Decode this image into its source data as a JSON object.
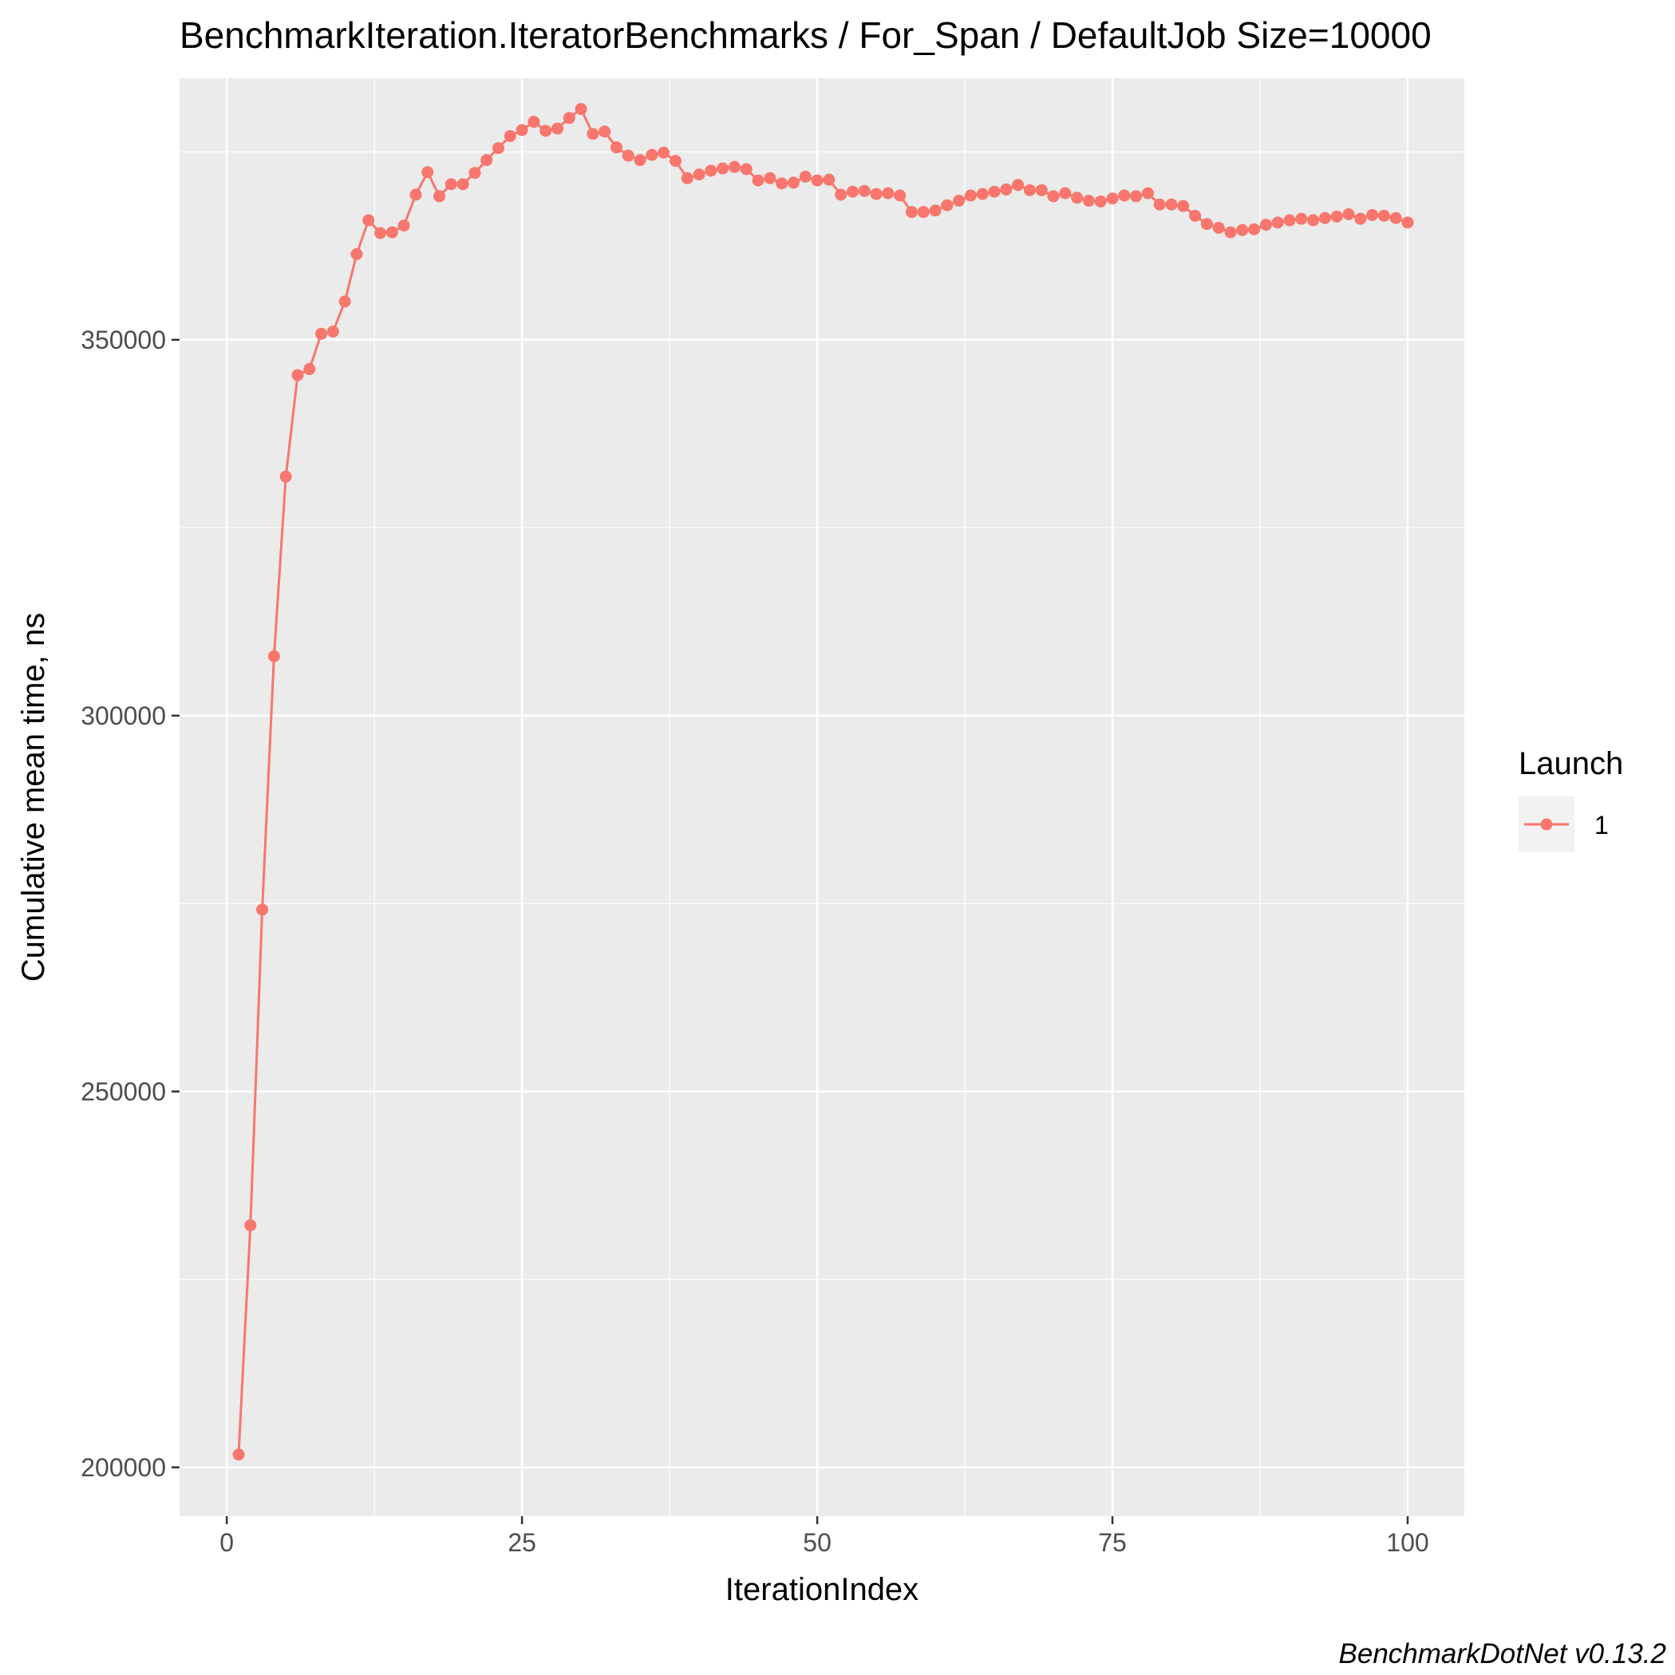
{
  "chart_data": {
    "type": "line",
    "title": "BenchmarkIteration.IteratorBenchmarks / For_Span / DefaultJob Size=10000",
    "xlabel": "IterationIndex",
    "ylabel": "Cumulative mean time, ns",
    "caption": "BenchmarkDotNet v0.13.2",
    "xlim": [
      -4,
      104.8
    ],
    "ylim": [
      193500,
      384800
    ],
    "x_ticks": [
      0,
      25,
      50,
      75,
      100
    ],
    "x_tick_labels": [
      "0",
      "25",
      "50",
      "75",
      "100"
    ],
    "y_ticks": [
      200000,
      250000,
      300000,
      350000
    ],
    "y_tick_labels": [
      "200000",
      "250000",
      "300000",
      "350000"
    ],
    "x_minor_ticks": [
      12.5,
      37.5,
      62.5,
      87.5
    ],
    "y_minor_ticks": [
      225000,
      275000,
      325000,
      375000
    ],
    "grid": true,
    "legend": {
      "title": "Launch",
      "position": "right"
    },
    "colors": {
      "series": "#F8766D",
      "panel": "#EBEBEB",
      "grid": "#FFFFFF"
    },
    "series": [
      {
        "name": "1",
        "x": [
          1,
          2,
          3,
          4,
          5,
          6,
          7,
          8,
          9,
          10,
          11,
          12,
          13,
          14,
          15,
          16,
          17,
          18,
          19,
          20,
          21,
          22,
          23,
          24,
          25,
          26,
          27,
          28,
          29,
          30,
          31,
          32,
          33,
          34,
          35,
          36,
          37,
          38,
          39,
          40,
          41,
          42,
          43,
          44,
          45,
          46,
          47,
          48,
          49,
          50,
          51,
          52,
          53,
          54,
          55,
          56,
          57,
          58,
          59,
          60,
          61,
          62,
          63,
          64,
          65,
          66,
          67,
          68,
          69,
          70,
          71,
          72,
          73,
          74,
          75,
          76,
          77,
          78,
          79,
          80,
          81,
          82,
          83,
          84,
          85,
          86,
          87,
          88,
          89,
          90,
          91,
          92,
          93,
          94,
          95,
          96,
          97,
          98,
          99,
          100
        ],
        "values": [
          201700,
          232200,
          274200,
          307900,
          331800,
          345300,
          346100,
          350800,
          351100,
          355100,
          361400,
          365900,
          364200,
          364300,
          365200,
          369300,
          372300,
          369100,
          370700,
          370700,
          372200,
          373900,
          375500,
          377100,
          377900,
          379000,
          377800,
          378100,
          379500,
          380700,
          377400,
          377700,
          375600,
          374500,
          373900,
          374600,
          374900,
          373800,
          371500,
          372000,
          372500,
          372800,
          373000,
          372700,
          371200,
          371500,
          370800,
          370900,
          371700,
          371200,
          371300,
          369300,
          369700,
          369800,
          369400,
          369500,
          369200,
          367000,
          367000,
          367200,
          367900,
          368500,
          369200,
          369400,
          369700,
          370000,
          370600,
          369900,
          369900,
          369100,
          369500,
          368900,
          368500,
          368400,
          368800,
          369200,
          369100,
          369500,
          368000,
          368000,
          367800,
          366500,
          365400,
          364900,
          364300,
          364600,
          364700,
          365300,
          365600,
          365900,
          366100,
          365900,
          366200,
          366400,
          366700,
          366100,
          366600,
          366500,
          366200,
          365600
        ]
      }
    ]
  }
}
